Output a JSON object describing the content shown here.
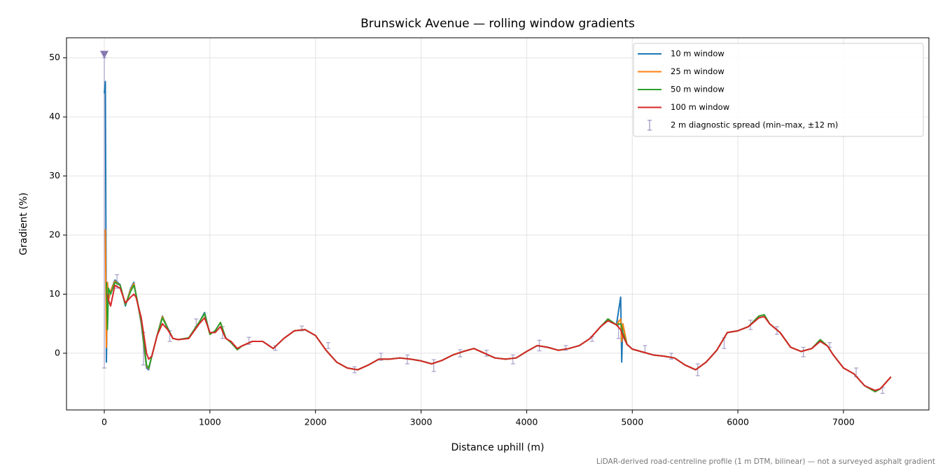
{
  "chart_data": {
    "type": "line",
    "title": "Brunswick Avenue — rolling window gradients",
    "x_label": "Distance uphill (m)",
    "y_label": "Gradient (%)",
    "footnote": "LiDAR-derived road-centreline profile (1 m DTM, bilinear) — not a surveyed asphalt gradient",
    "xlim": [
      -358,
      7809
    ],
    "ylim": [
      -9.6,
      53.4
    ],
    "xticks": [
      0,
      1000,
      2000,
      3000,
      4000,
      5000,
      6000,
      7000
    ],
    "yticks": [
      0,
      10,
      20,
      30,
      40,
      50
    ],
    "grid": true,
    "legend": "upper right",
    "x": [
      0,
      10,
      20,
      30,
      40,
      60,
      100,
      150,
      200,
      250,
      280,
      300,
      350,
      400,
      420,
      450,
      500,
      550,
      600,
      650,
      700,
      800,
      900,
      950,
      1000,
      1050,
      1100,
      1150,
      1200,
      1260,
      1300,
      1400,
      1500,
      1600,
      1700,
      1800,
      1900,
      2000,
      2100,
      2200,
      2300,
      2400,
      2500,
      2600,
      2700,
      2800,
      2900,
      3000,
      3100,
      3200,
      3300,
      3400,
      3500,
      3600,
      3700,
      3800,
      3900,
      4000,
      4100,
      4200,
      4300,
      4400,
      4500,
      4600,
      4700,
      4770,
      4850,
      4890,
      4900,
      4910,
      4950,
      5000,
      5100,
      5200,
      5300,
      5400,
      5500,
      5600,
      5700,
      5800,
      5900,
      6000,
      6100,
      6200,
      6250,
      6300,
      6400,
      6500,
      6600,
      6700,
      6780,
      6850,
      6900,
      7000,
      7100,
      7200,
      7300,
      7350,
      7400,
      7450
    ],
    "series": [
      {
        "name": "10 m window",
        "color": "#1f77b4",
        "values": [
          44,
          46,
          -1.5,
          12,
          9,
          10.5,
          12.4,
          11.6,
          8,
          11,
          12,
          10,
          5,
          -2.5,
          -2.8,
          -0.5,
          3,
          6.3,
          4.3,
          2.5,
          2.3,
          2.6,
          5.3,
          6.9,
          3.2,
          3.8,
          5.2,
          2.6,
          1.8,
          0.6,
          1.2,
          2,
          2,
          0.8,
          2.5,
          3.8,
          4,
          3,
          0.5,
          -1.5,
          -2.5,
          -2.8,
          -2,
          -1,
          -1,
          -0.8,
          -1,
          -1.3,
          -1.8,
          -1.2,
          -0.3,
          0.3,
          0.8,
          0,
          -0.8,
          -1,
          -0.8,
          0.3,
          1.3,
          1,
          0.5,
          0.8,
          1.3,
          2.5,
          4.5,
          5.8,
          4.8,
          9.5,
          -1.5,
          5,
          1.5,
          0.7,
          0.2,
          -0.3,
          -0.5,
          -0.8,
          -2,
          -2.8,
          -1.5,
          0.5,
          3.5,
          3.8,
          4.5,
          6.3,
          6.5,
          5,
          3.5,
          1,
          0.3,
          0.8,
          2.3,
          1.2,
          -0.2,
          -2.5,
          -3.5,
          -5.5,
          -6.5,
          -6,
          -5,
          -4
        ]
      },
      {
        "name": "25 m window",
        "color": "#ff7f0e",
        "values": [
          null,
          21,
          1,
          12,
          9,
          10.5,
          12.2,
          11.5,
          8.2,
          10.8,
          11.8,
          10,
          5.3,
          -2.2,
          -2.6,
          -0.5,
          3,
          6.2,
          4.2,
          2.5,
          2.3,
          2.6,
          5.3,
          6.7,
          3.2,
          3.8,
          5.2,
          2.6,
          1.8,
          0.6,
          1.2,
          2,
          2,
          0.8,
          2.5,
          3.8,
          4,
          3,
          0.5,
          -1.5,
          -2.5,
          -2.8,
          -2,
          -1,
          -1,
          -0.8,
          -1,
          -1.3,
          -1.8,
          -1.2,
          -0.3,
          0.3,
          0.8,
          0,
          -0.8,
          -1,
          -0.8,
          0.3,
          1.3,
          1,
          0.5,
          0.8,
          1.3,
          2.5,
          4.5,
          5.8,
          4.8,
          5.8,
          2,
          5,
          1.5,
          0.7,
          0.2,
          -0.3,
          -0.5,
          -0.8,
          -2,
          -2.8,
          -1.5,
          0.5,
          3.5,
          3.8,
          4.5,
          6.3,
          6.5,
          5,
          3.5,
          1,
          0.3,
          0.8,
          2.3,
          1.2,
          -0.2,
          -2.5,
          -3.5,
          -5.5,
          -6.5,
          -6,
          -5,
          -4
        ]
      },
      {
        "name": "50 m window",
        "color": "#2ca02c",
        "values": [
          null,
          null,
          12,
          4,
          11,
          10,
          12,
          11.5,
          8.2,
          10.5,
          11.5,
          10,
          5.5,
          -2,
          -2.5,
          -0.5,
          3,
          6,
          4.2,
          2.5,
          2.3,
          2.6,
          5.3,
          6.7,
          3.2,
          3.8,
          5.2,
          2.6,
          1.8,
          0.6,
          1.2,
          2,
          2,
          0.8,
          2.5,
          3.8,
          4,
          3,
          0.5,
          -1.5,
          -2.5,
          -2.8,
          -2,
          -1,
          -1,
          -0.8,
          -1,
          -1.3,
          -1.8,
          -1.2,
          -0.3,
          0.3,
          0.8,
          0,
          -0.8,
          -1,
          -0.8,
          0.3,
          1.3,
          1,
          0.5,
          0.8,
          1.3,
          2.5,
          4.5,
          5.8,
          4.8,
          5,
          4.5,
          3.5,
          1.5,
          0.7,
          0.2,
          -0.3,
          -0.5,
          -0.8,
          -2,
          -2.8,
          -1.5,
          0.5,
          3.5,
          3.8,
          4.5,
          6.3,
          6.5,
          5,
          3.5,
          1,
          0.3,
          0.8,
          2.3,
          1.2,
          -0.2,
          -2.5,
          -3.5,
          -5.5,
          -6.5,
          -6,
          -5,
          -4
        ]
      },
      {
        "name": "100 m window",
        "color": "#d62728",
        "values": [
          null,
          null,
          null,
          10,
          9,
          8,
          11.5,
          11,
          8.5,
          9.5,
          10,
          9.5,
          6,
          0,
          -1,
          -0.5,
          3,
          5,
          4,
          2.5,
          2.3,
          2.5,
          5,
          6,
          3.5,
          3.5,
          4.5,
          2.5,
          2,
          0.8,
          1.2,
          2,
          2,
          0.8,
          2.5,
          3.8,
          4,
          3,
          0.5,
          -1.5,
          -2.5,
          -2.8,
          -2,
          -1,
          -1,
          -0.8,
          -1,
          -1.3,
          -1.8,
          -1.2,
          -0.3,
          0.3,
          0.8,
          0,
          -0.8,
          -1,
          -0.8,
          0.3,
          1.3,
          1,
          0.5,
          0.8,
          1.3,
          2.5,
          4.5,
          5.5,
          4.8,
          4,
          3.5,
          3,
          1.5,
          0.7,
          0.2,
          -0.3,
          -0.5,
          -0.8,
          -2,
          -2.8,
          -1.5,
          0.5,
          3.5,
          3.8,
          4.5,
          6,
          6.2,
          5,
          3.5,
          1,
          0.3,
          0.8,
          2,
          1.2,
          -0.2,
          -2.5,
          -3.5,
          -5.5,
          -6.3,
          -6,
          -5,
          -4
        ]
      }
    ],
    "spread": {
      "name": "2 m diagnostic spread (min–max, ±12 m)",
      "color": "#9890c0",
      "x": [
        0,
        120,
        370,
        620,
        870,
        1120,
        1370,
        1620,
        1870,
        2120,
        2370,
        2620,
        2870,
        3120,
        3370,
        3620,
        3870,
        4120,
        4370,
        4620,
        4870,
        5120,
        5370,
        5620,
        5870,
        6120,
        6370,
        6620,
        6870,
        7120,
        7370
      ],
      "low": [
        -2.5,
        11,
        -2,
        2,
        4.5,
        2.5,
        1.5,
        0.5,
        3.8,
        0.8,
        -3.3,
        -1.2,
        -1.8,
        -3.1,
        -0.6,
        -0.5,
        -1.8,
        0.4,
        0.5,
        2,
        2.5,
        0.1,
        -1,
        -3.8,
        0.8,
        4,
        3.2,
        -0.6,
        1,
        -4,
        -6.8
      ],
      "high": [
        50,
        13.3,
        3.5,
        3.8,
        5.8,
        4.5,
        2.7,
        1.3,
        4.6,
        1.8,
        -2.3,
        0,
        -0.3,
        -1.1,
        0.6,
        0.5,
        -0.3,
        2.2,
        1.3,
        2.8,
        5.5,
        1.3,
        0,
        -1.8,
        2.6,
        5.6,
        4.5,
        1,
        1.8,
        -2.5,
        -5.8
      ]
    },
    "overflow_marker": {
      "x": 0,
      "y": 50.6,
      "color": "#8878b0"
    }
  }
}
